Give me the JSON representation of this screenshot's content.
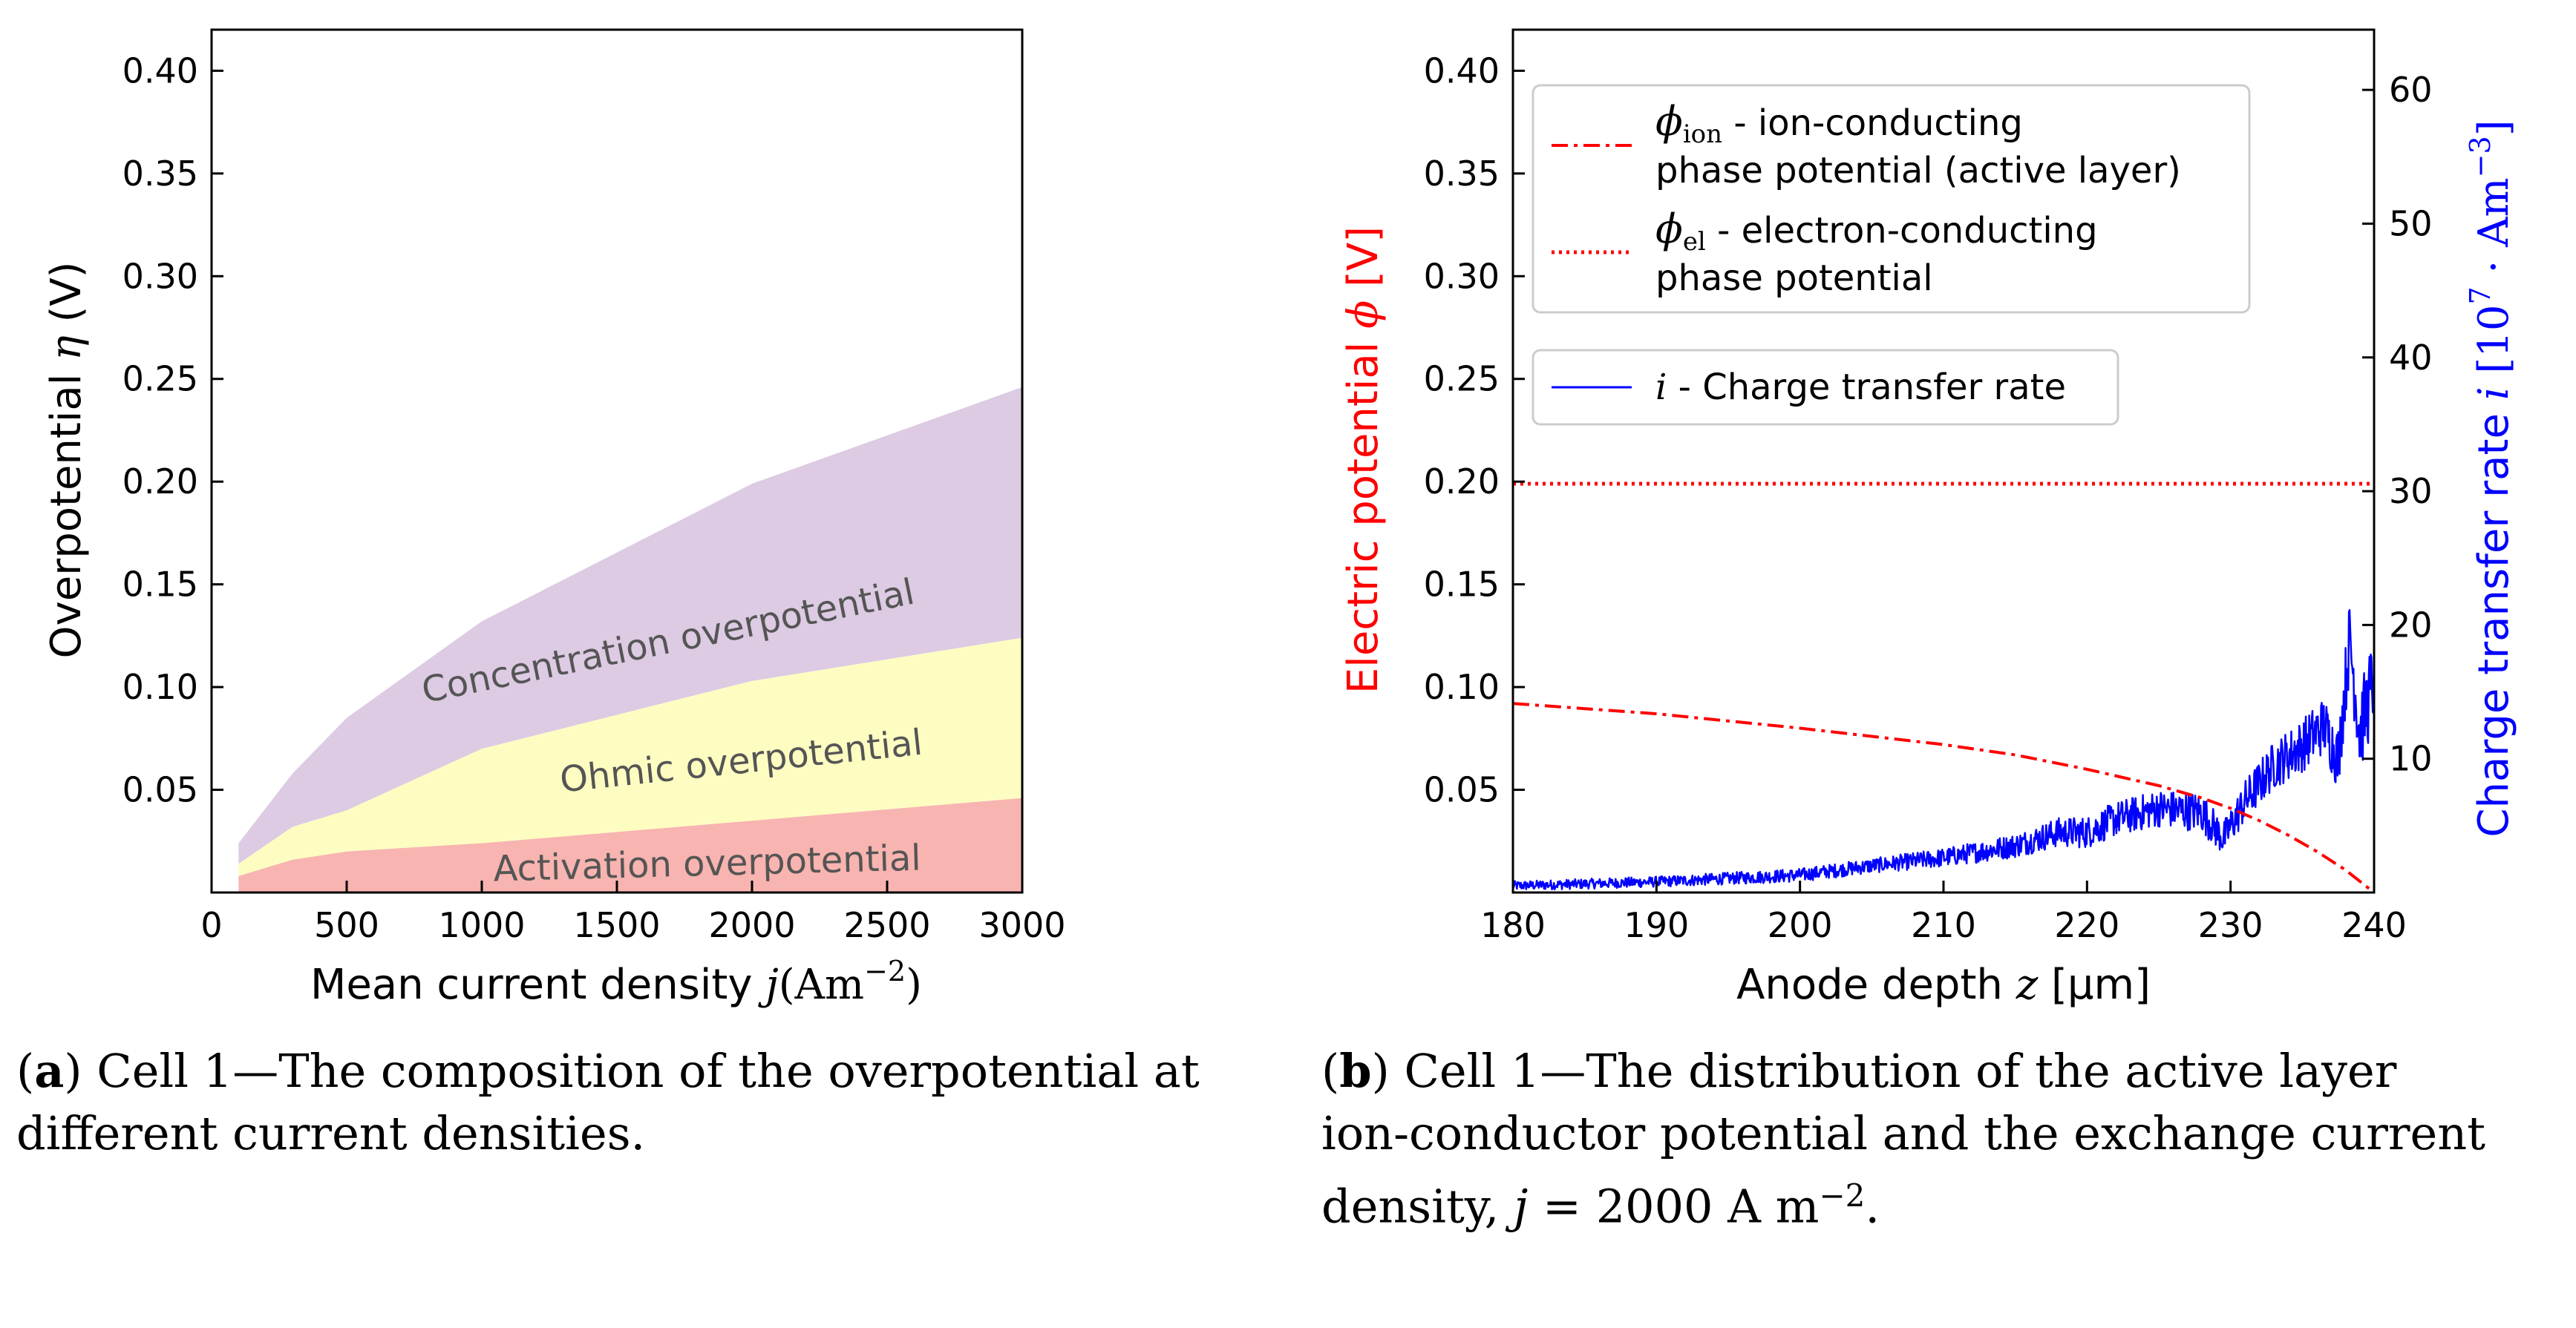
{
  "chart_data": [
    {
      "type": "area",
      "stacked": true,
      "xlabel_text": "Mean current density ",
      "xlabel_var": "j",
      "xlabel_unit": "(Am",
      "xlabel_exp": "−2",
      "xlabel_close": ")",
      "ylabel_text": "Overpotential ",
      "ylabel_var": "η",
      "ylabel_unit": " (V)",
      "xlim": [
        0,
        3000
      ],
      "ylim": [
        0,
        0.42
      ],
      "xticks": [
        "0",
        "500",
        "1000",
        "1500",
        "2000",
        "2500",
        "3000"
      ],
      "yticks": [
        "0.05",
        "0.10",
        "0.15",
        "0.20",
        "0.25",
        "0.30",
        "0.35",
        "0.40"
      ],
      "x": [
        100,
        300,
        500,
        1000,
        2000,
        3000
      ],
      "series": [
        {
          "name": "Activation overpotential",
          "color": "#f8b4b0",
          "values": [
            0.008,
            0.016,
            0.02,
            0.024,
            0.035,
            0.046
          ]
        },
        {
          "name": "Ohmic overpotential",
          "color": "#fdfdc2",
          "values": [
            0.006,
            0.016,
            0.02,
            0.046,
            0.068,
            0.078
          ]
        },
        {
          "name": "Concentration overpotential",
          "color": "#dccbe3",
          "values": [
            0.01,
            0.026,
            0.045,
            0.062,
            0.096,
            0.122
          ]
        }
      ],
      "labels": [
        "Activation overpotential",
        "Ohmic overpotential",
        "Concentration overpotential"
      ]
    },
    {
      "type": "line",
      "xlabel_text": "Anode depth ",
      "xlabel_var": "z",
      "xlabel_unit": " [μm]",
      "ylabel_left_text": "Electric potential ",
      "ylabel_left_var": "ϕ",
      "ylabel_left_unit": " [V]",
      "ylabel_right_text": "Charge transfer rate ",
      "ylabel_right_var": "i",
      "ylabel_right_unit": " [10",
      "ylabel_right_exp": "7",
      "ylabel_right_mid": " · Am",
      "ylabel_right_exp2": "−3",
      "ylabel_right_close": "]",
      "xlim": [
        180,
        240
      ],
      "ylim_left": [
        0,
        0.42
      ],
      "ylim_right": [
        0,
        64.5
      ],
      "xticks": [
        "180",
        "190",
        "200",
        "210",
        "220",
        "230",
        "240"
      ],
      "yticks_left": [
        "0.05",
        "0.10",
        "0.15",
        "0.20",
        "0.25",
        "0.30",
        "0.35",
        "0.40"
      ],
      "yticks_right": [
        "10",
        "20",
        "30",
        "40",
        "50",
        "60"
      ],
      "series": [
        {
          "name": "ϕion - ion-conducting phase potential (active layer)",
          "color": "#ff0000",
          "style": "dashdot",
          "axis": "left",
          "x": [
            180,
            190,
            200,
            210,
            215,
            220,
            225,
            228,
            230,
            232,
            234,
            236,
            238,
            240
          ],
          "y": [
            0.092,
            0.087,
            0.08,
            0.072,
            0.067,
            0.06,
            0.052,
            0.046,
            0.041,
            0.035,
            0.028,
            0.02,
            0.011,
            0.0
          ]
        },
        {
          "name": "ϕel - electron-conducting phase potential",
          "color": "#ff0000",
          "style": "dotted",
          "axis": "left",
          "x": [
            180,
            240
          ],
          "y": [
            0.199,
            0.199
          ]
        },
        {
          "name": "i - Charge transfer rate",
          "color": "#0000ff",
          "style": "solid",
          "axis": "right",
          "x": [
            180,
            190,
            200,
            205,
            210,
            215,
            218,
            220,
            222,
            225,
            228,
            229.5,
            231,
            233,
            235,
            236.5,
            237.5,
            238.3,
            239,
            240
          ],
          "y": [
            0.5,
            0.8,
            1.3,
            2.0,
            2.6,
            3.5,
            4.5,
            4.5,
            5.5,
            6.3,
            6.0,
            4.0,
            6.8,
            9.5,
            11.0,
            12.5,
            10.0,
            19.0,
            12.0,
            16.0
          ],
          "noise": [
            0.35,
            0.4,
            0.5,
            0.55,
            0.7,
            0.9,
            1.1,
            1.2,
            1.3,
            1.4,
            1.5,
            1.3,
            1.6,
            1.8,
            2.0,
            2.2,
            2.4,
            3.0,
            3.2,
            3.5
          ]
        }
      ],
      "legend1": {
        "ion_symbol": "ϕ",
        "ion_sub": "ion",
        "ion_line1": " - ion-conducting",
        "ion_line2": " phase potential (active layer)",
        "el_symbol": "ϕ",
        "el_sub": "el",
        "el_line1": " - electron-conducting",
        "el_line2": " phase potential"
      },
      "legend2": {
        "i_symbol": "i",
        "i_text": " - Charge transfer rate"
      }
    }
  ],
  "captions": {
    "a_label": "a",
    "a_text": " Cell 1—The composition of the overpotential at",
    "a_line2": "different current densities.",
    "b_label": "b",
    "b_text": " Cell 1—The distribution of the active layer",
    "b_line2": "ion-conductor potential and the exchange current",
    "b_line3_pre": "density, ",
    "b_line3_var": "j",
    "b_line3_eq": " = 2000 A m",
    "b_line3_exp": "−2",
    "b_line3_end": "."
  }
}
